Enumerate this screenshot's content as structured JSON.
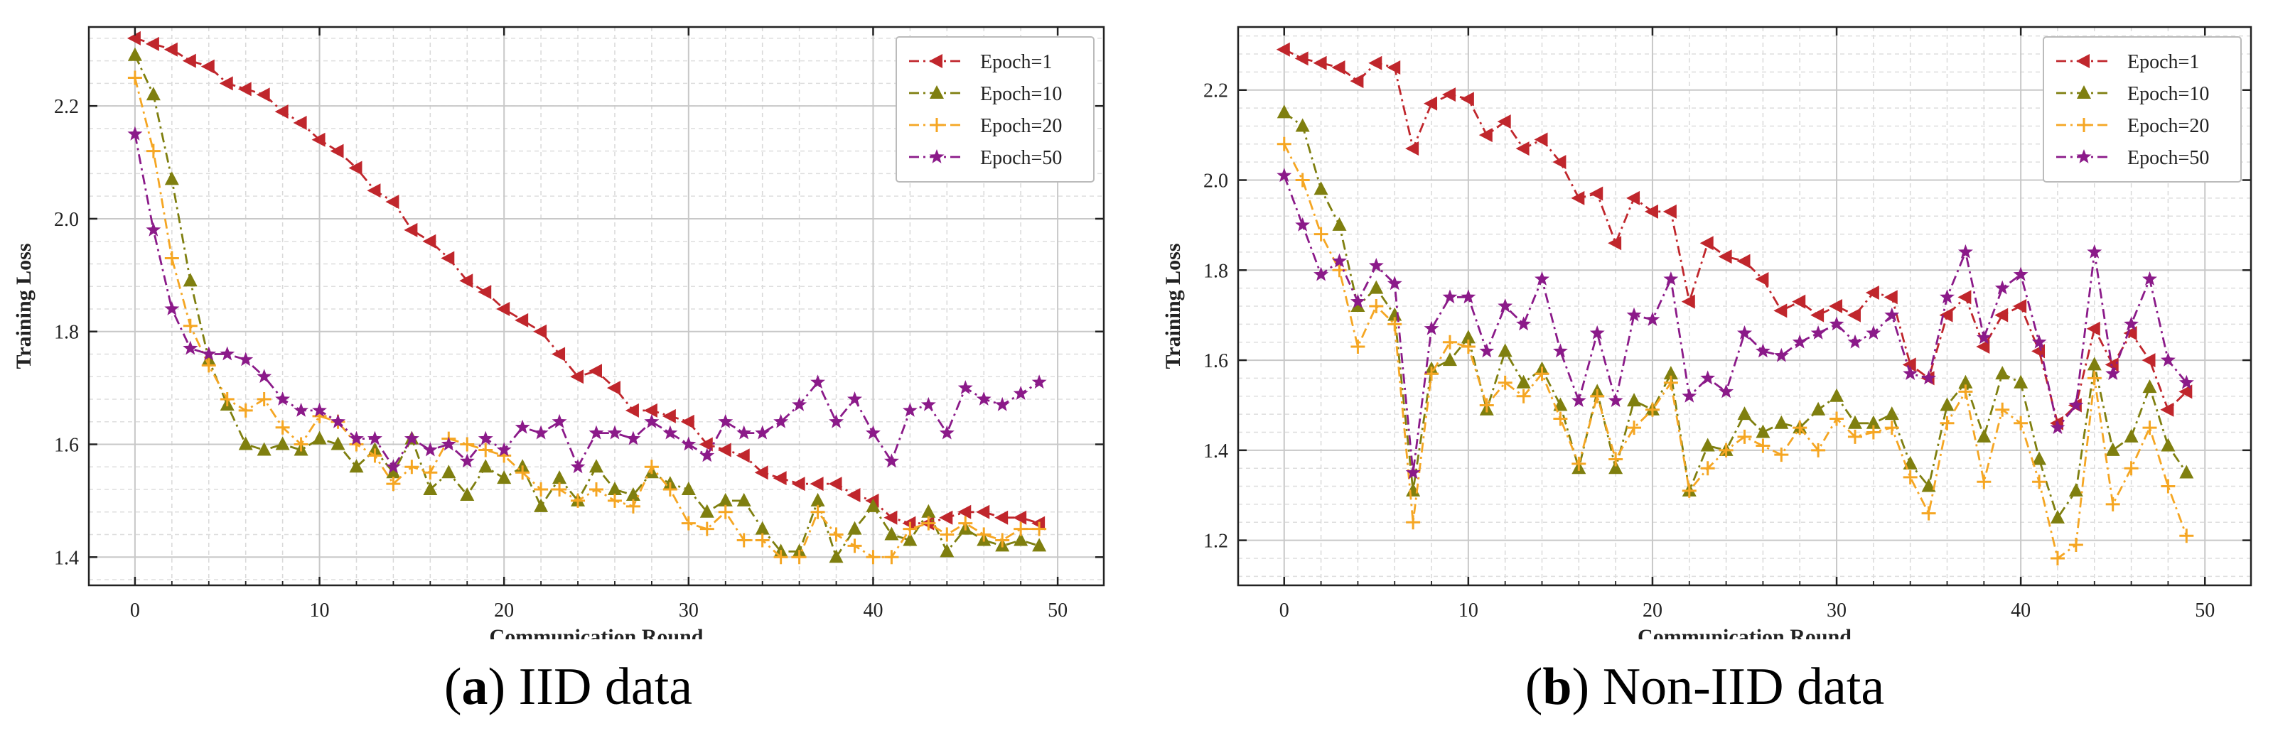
{
  "chart_data": [
    {
      "type": "line",
      "panel_letter": "a",
      "caption_text": "IID data",
      "xlabel": "Communication Round",
      "ylabel": "Training Loss",
      "xlim": [
        -2.5,
        52.5
      ],
      "ylim": [
        1.35,
        2.34
      ],
      "xticks": [
        0,
        10,
        20,
        30,
        40,
        50
      ],
      "yticks": [
        1.4,
        1.6,
        1.8,
        2.0,
        2.2
      ],
      "ytick_labels": [
        "1.4",
        "1.6",
        "1.8",
        "2.0",
        "2.2"
      ],
      "legend_position": "top-right",
      "grid": true,
      "x": [
        0,
        1,
        2,
        3,
        4,
        5,
        6,
        7,
        8,
        9,
        10,
        11,
        12,
        13,
        14,
        15,
        16,
        17,
        18,
        19,
        20,
        21,
        22,
        23,
        24,
        25,
        26,
        27,
        28,
        29,
        30,
        31,
        32,
        33,
        34,
        35,
        36,
        37,
        38,
        39,
        40,
        41,
        42,
        43,
        44,
        45,
        46,
        47,
        48,
        49
      ],
      "series": [
        {
          "name": "Epoch=1",
          "color": "#c0262c",
          "marker": "triangle-left",
          "values": [
            2.32,
            2.31,
            2.3,
            2.28,
            2.27,
            2.24,
            2.23,
            2.22,
            2.19,
            2.17,
            2.14,
            2.12,
            2.09,
            2.05,
            2.03,
            1.98,
            1.96,
            1.93,
            1.89,
            1.87,
            1.84,
            1.82,
            1.8,
            1.76,
            1.72,
            1.73,
            1.7,
            1.66,
            1.66,
            1.65,
            1.64,
            1.6,
            1.59,
            1.58,
            1.55,
            1.54,
            1.53,
            1.53,
            1.53,
            1.51,
            1.5,
            1.47,
            1.46,
            1.46,
            1.47,
            1.48,
            1.48,
            1.47,
            1.47,
            1.46
          ]
        },
        {
          "name": "Epoch=10",
          "color": "#7f7f0f",
          "marker": "triangle-up",
          "values": [
            2.29,
            2.22,
            2.07,
            1.89,
            1.75,
            1.67,
            1.6,
            1.59,
            1.6,
            1.59,
            1.61,
            1.6,
            1.56,
            1.59,
            1.55,
            1.61,
            1.52,
            1.55,
            1.51,
            1.56,
            1.54,
            1.56,
            1.49,
            1.54,
            1.5,
            1.56,
            1.52,
            1.51,
            1.55,
            1.53,
            1.52,
            1.48,
            1.5,
            1.5,
            1.45,
            1.41,
            1.41,
            1.5,
            1.4,
            1.45,
            1.49,
            1.44,
            1.43,
            1.48,
            1.41,
            1.45,
            1.43,
            1.42,
            1.43,
            1.42
          ]
        },
        {
          "name": "Epoch=20",
          "color": "#f5a623",
          "marker": "plus",
          "values": [
            2.25,
            2.12,
            1.93,
            1.81,
            1.74,
            1.68,
            1.66,
            1.68,
            1.63,
            1.6,
            1.65,
            1.64,
            1.6,
            1.58,
            1.53,
            1.56,
            1.55,
            1.61,
            1.6,
            1.59,
            1.58,
            1.55,
            1.52,
            1.52,
            1.5,
            1.52,
            1.5,
            1.49,
            1.56,
            1.52,
            1.46,
            1.45,
            1.48,
            1.43,
            1.43,
            1.4,
            1.4,
            1.48,
            1.44,
            1.42,
            1.4,
            1.4,
            1.45,
            1.46,
            1.44,
            1.46,
            1.44,
            1.43,
            1.45,
            1.45
          ]
        },
        {
          "name": "Epoch=50",
          "color": "#8b1a89",
          "marker": "star",
          "values": [
            2.15,
            1.98,
            1.84,
            1.77,
            1.76,
            1.76,
            1.75,
            1.72,
            1.68,
            1.66,
            1.66,
            1.64,
            1.61,
            1.61,
            1.56,
            1.61,
            1.59,
            1.6,
            1.57,
            1.61,
            1.59,
            1.63,
            1.62,
            1.64,
            1.56,
            1.62,
            1.62,
            1.61,
            1.64,
            1.62,
            1.6,
            1.58,
            1.64,
            1.62,
            1.62,
            1.64,
            1.67,
            1.71,
            1.64,
            1.68,
            1.62,
            1.57,
            1.66,
            1.67,
            1.62,
            1.7,
            1.68,
            1.67,
            1.69,
            1.71
          ]
        }
      ]
    },
    {
      "type": "line",
      "panel_letter": "b",
      "caption_text": "Non-IID data",
      "xlabel": "Communication Round",
      "ylabel": "Training Loss",
      "xlim": [
        -2.5,
        52.5
      ],
      "ylim": [
        1.1,
        2.34
      ],
      "xticks": [
        0,
        10,
        20,
        30,
        40,
        50
      ],
      "yticks": [
        1.2,
        1.4,
        1.6,
        1.8,
        2.0,
        2.2
      ],
      "ytick_labels": [
        "1.2",
        "1.4",
        "1.6",
        "1.8",
        "2.0",
        "2.2"
      ],
      "legend_position": "top-right",
      "grid": true,
      "x": [
        0,
        1,
        2,
        3,
        4,
        5,
        6,
        7,
        8,
        9,
        10,
        11,
        12,
        13,
        14,
        15,
        16,
        17,
        18,
        19,
        20,
        21,
        22,
        23,
        24,
        25,
        26,
        27,
        28,
        29,
        30,
        31,
        32,
        33,
        34,
        35,
        36,
        37,
        38,
        39,
        40,
        41,
        42,
        43,
        44,
        45,
        46,
        47,
        48,
        49
      ],
      "series": [
        {
          "name": "Epoch=1",
          "color": "#c0262c",
          "marker": "triangle-left",
          "values": [
            2.29,
            2.27,
            2.26,
            2.25,
            2.22,
            2.26,
            2.25,
            2.07,
            2.17,
            2.19,
            2.18,
            2.1,
            2.13,
            2.07,
            2.09,
            2.04,
            1.96,
            1.97,
            1.86,
            1.96,
            1.93,
            1.93,
            1.73,
            1.86,
            1.83,
            1.82,
            1.78,
            1.71,
            1.73,
            1.7,
            1.72,
            1.7,
            1.75,
            1.74,
            1.59,
            1.56,
            1.7,
            1.74,
            1.63,
            1.7,
            1.72,
            1.62,
            1.46,
            1.5,
            1.67,
            1.59,
            1.66,
            1.6,
            1.49,
            1.53
          ]
        },
        {
          "name": "Epoch=10",
          "color": "#7f7f0f",
          "marker": "triangle-up",
          "values": [
            2.15,
            2.12,
            1.98,
            1.9,
            1.72,
            1.76,
            1.7,
            1.31,
            1.58,
            1.6,
            1.65,
            1.49,
            1.62,
            1.55,
            1.58,
            1.5,
            1.36,
            1.53,
            1.36,
            1.51,
            1.49,
            1.57,
            1.31,
            1.41,
            1.4,
            1.48,
            1.44,
            1.46,
            1.45,
            1.49,
            1.52,
            1.46,
            1.46,
            1.48,
            1.37,
            1.32,
            1.5,
            1.55,
            1.43,
            1.57,
            1.55,
            1.38,
            1.25,
            1.31,
            1.59,
            1.4,
            1.43,
            1.54,
            1.41,
            1.35
          ]
        },
        {
          "name": "Epoch=20",
          "color": "#f5a623",
          "marker": "plus",
          "values": [
            2.08,
            2.0,
            1.88,
            1.8,
            1.63,
            1.72,
            1.68,
            1.24,
            1.57,
            1.64,
            1.63,
            1.5,
            1.55,
            1.52,
            1.57,
            1.47,
            1.37,
            1.52,
            1.38,
            1.45,
            1.49,
            1.55,
            1.31,
            1.36,
            1.4,
            1.43,
            1.41,
            1.39,
            1.45,
            1.4,
            1.47,
            1.43,
            1.44,
            1.45,
            1.34,
            1.26,
            1.46,
            1.53,
            1.33,
            1.49,
            1.46,
            1.33,
            1.16,
            1.19,
            1.56,
            1.28,
            1.36,
            1.45,
            1.32,
            1.21
          ]
        },
        {
          "name": "Epoch=50",
          "color": "#8b1a89",
          "marker": "star",
          "values": [
            2.01,
            1.9,
            1.79,
            1.82,
            1.73,
            1.81,
            1.77,
            1.35,
            1.67,
            1.74,
            1.74,
            1.62,
            1.72,
            1.68,
            1.78,
            1.62,
            1.51,
            1.66,
            1.51,
            1.7,
            1.69,
            1.78,
            1.52,
            1.56,
            1.53,
            1.66,
            1.62,
            1.61,
            1.64,
            1.66,
            1.68,
            1.64,
            1.66,
            1.7,
            1.57,
            1.56,
            1.74,
            1.84,
            1.65,
            1.76,
            1.79,
            1.64,
            1.45,
            1.5,
            1.84,
            1.57,
            1.68,
            1.78,
            1.6,
            1.55
          ]
        }
      ]
    }
  ]
}
